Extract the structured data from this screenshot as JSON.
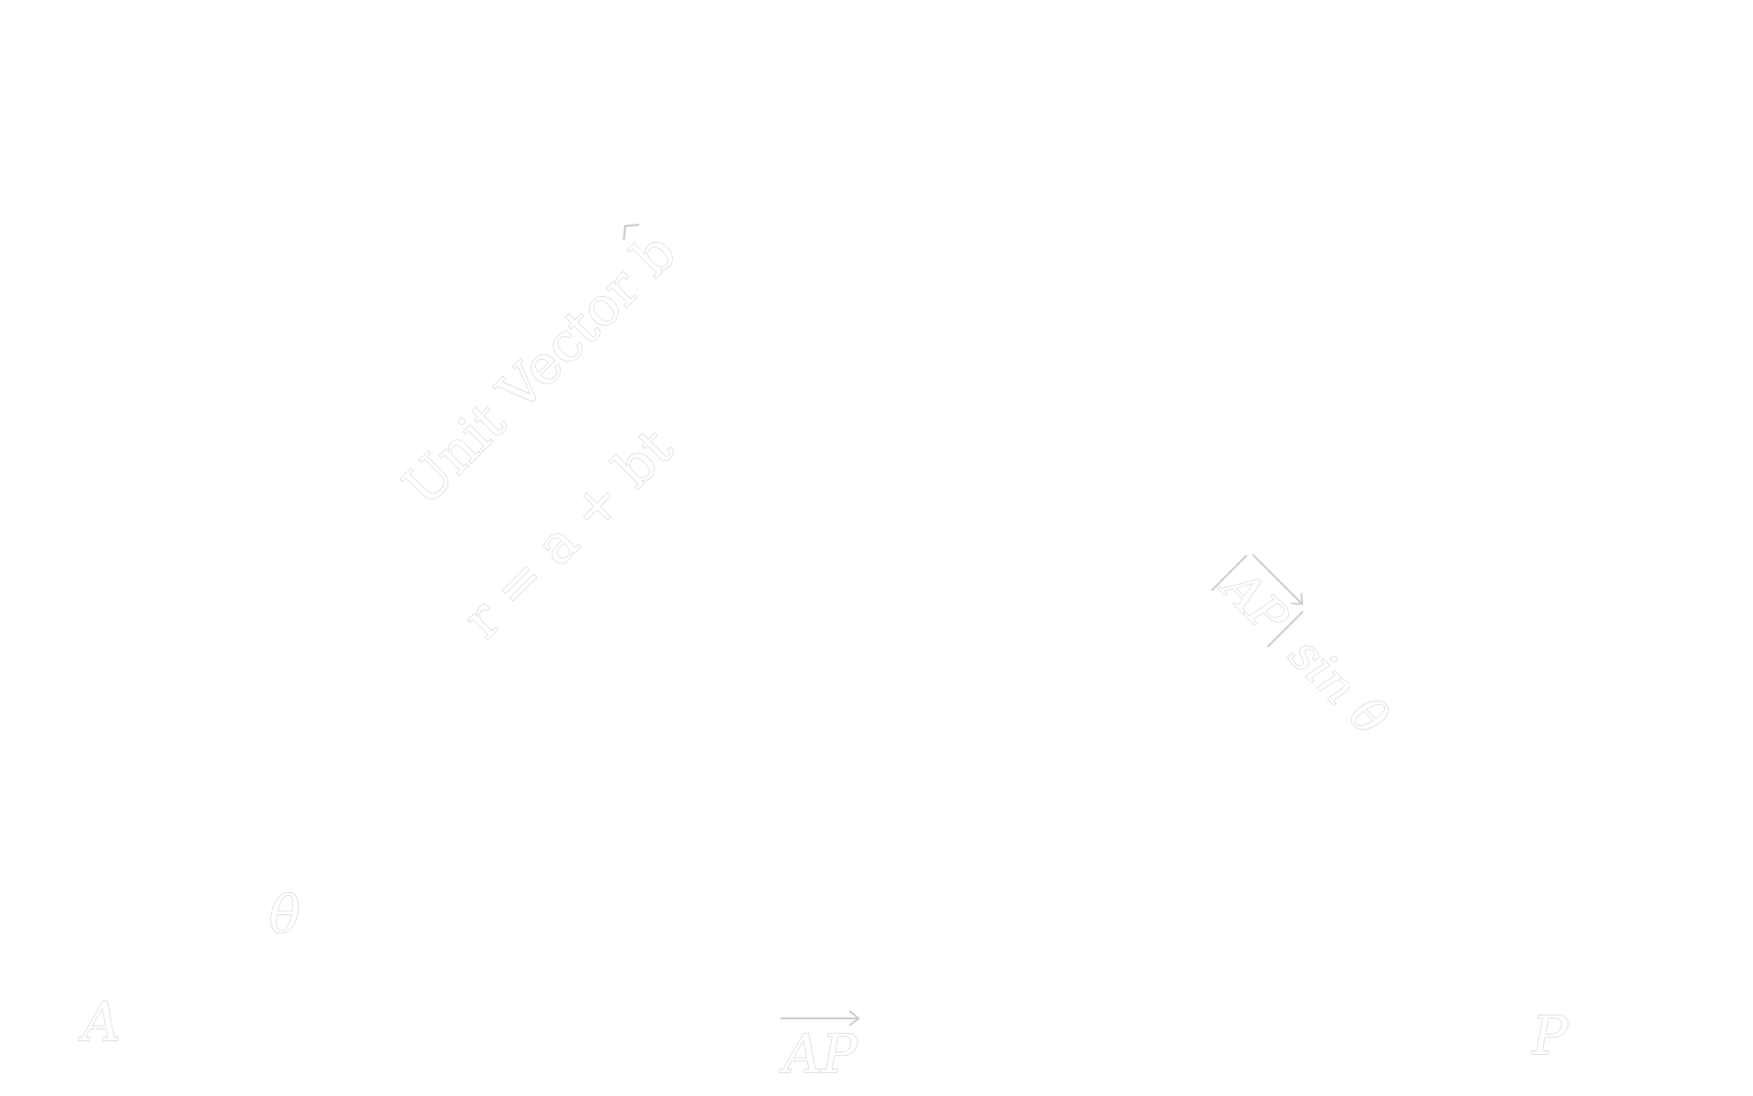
{
  "diagram": {
    "title": "Unit Vector",
    "title_symbol": "b",
    "equation": "r = a + bt",
    "point_a": "A",
    "point_p": "P",
    "angle_label": "θ",
    "vector_ap": "AP",
    "distance_vector": "AP",
    "distance_trig": "sin θ",
    "stroke_color": "#c9ccd4",
    "background_color": "#ffffff"
  }
}
